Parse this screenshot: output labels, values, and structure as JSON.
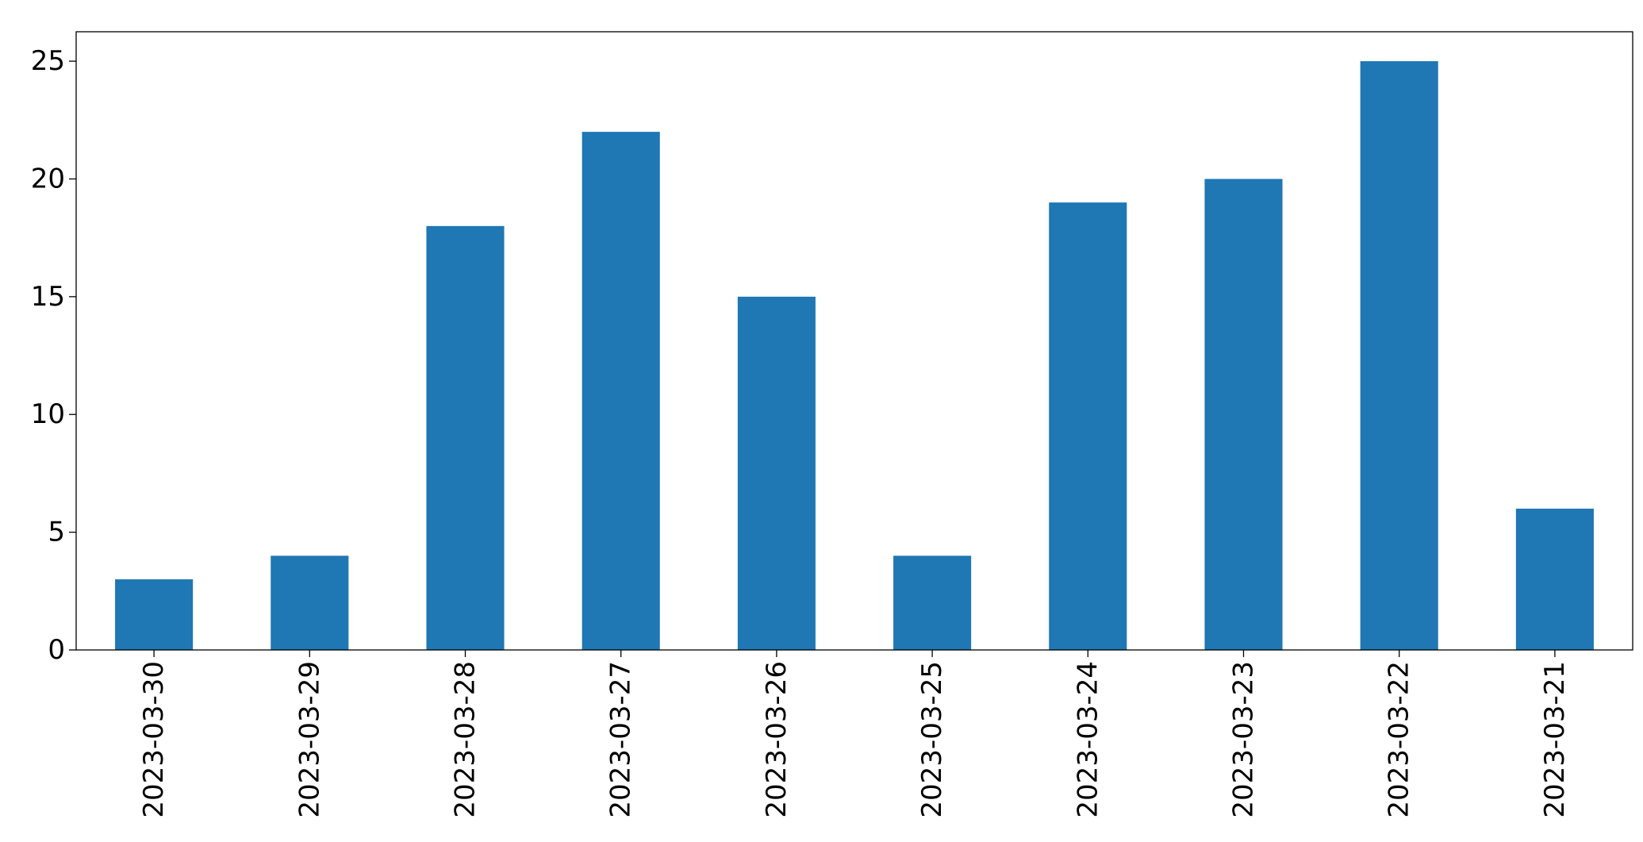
{
  "chart_data": {
    "type": "bar",
    "categories": [
      "2023-03-30",
      "2023-03-29",
      "2023-03-28",
      "2023-03-27",
      "2023-03-26",
      "2023-03-25",
      "2023-03-24",
      "2023-03-23",
      "2023-03-22",
      "2023-03-21"
    ],
    "values": [
      3,
      4,
      18,
      22,
      15,
      4,
      19,
      20,
      25,
      6
    ],
    "color": "#1f77b4",
    "ylim": [
      0,
      26.25
    ],
    "yticks": [
      0,
      5,
      10,
      15,
      20,
      25
    ],
    "grid": false
  }
}
